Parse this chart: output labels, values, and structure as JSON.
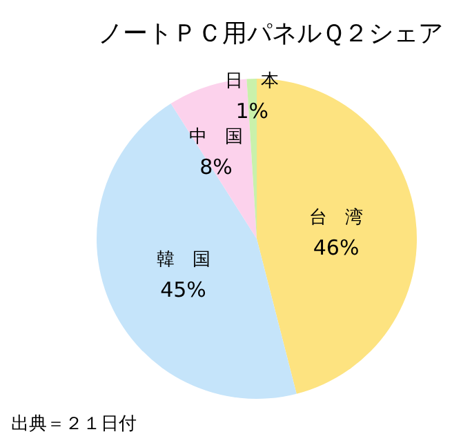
{
  "chart_data": {
    "type": "pie",
    "title": "ノートＰＣ用パネルＱ２シェア",
    "categories": [
      "台　湾",
      "韓　国",
      "中　国",
      "日　本"
    ],
    "values": [
      46,
      45,
      8,
      1
    ],
    "value_labels": [
      "46%",
      "45%",
      "8%",
      "1%"
    ],
    "colors": [
      "#fde380",
      "#c5e4fa",
      "#fcd2ec",
      "#c9f1ab"
    ],
    "legend": false,
    "annotations": [
      "出典＝２１日付"
    ]
  }
}
